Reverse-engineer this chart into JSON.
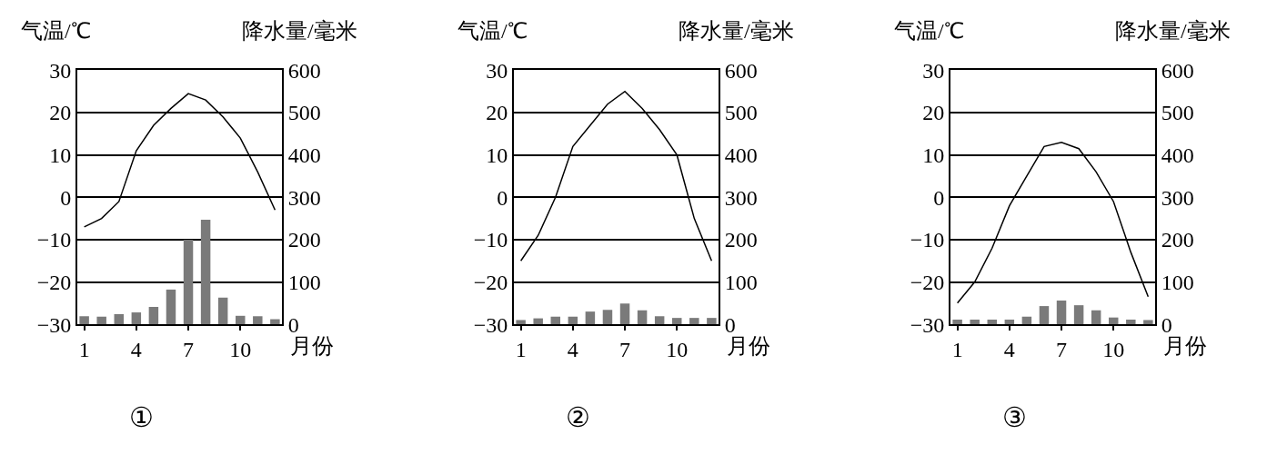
{
  "chart_data": [
    {
      "type": "bar",
      "title": "①",
      "xlabel": "月份",
      "ylabel": "气温/℃",
      "y2label": "降水量/毫米",
      "x": [
        1,
        2,
        3,
        4,
        5,
        6,
        7,
        8,
        9,
        10,
        11,
        12
      ],
      "xlim": [
        0.6,
        12.4
      ],
      "xticks": [
        1,
        4,
        7,
        10
      ],
      "ylim": [
        -30,
        30
      ],
      "yticks": [
        -30,
        -20,
        -10,
        0,
        10,
        20,
        30
      ],
      "y2lim": [
        0,
        600
      ],
      "y2ticks": [
        0,
        100,
        200,
        300,
        400,
        500,
        600
      ],
      "grid": "y",
      "series": [
        {
          "axis": "y2",
          "color": "#7a7a7a",
          "values": [
            19,
            18,
            24,
            28,
            41,
            82,
            200,
            247,
            63,
            20,
            19,
            12
          ]
        },
        {
          "type": "line",
          "color": "#000000",
          "values": [
            -7,
            -5,
            -1,
            11,
            17,
            21,
            24.5,
            23,
            19,
            14,
            6,
            -3
          ]
        }
      ]
    },
    {
      "type": "bar",
      "title": "②",
      "xlabel": "月份",
      "ylabel": "气温/℃",
      "y2label": "降水量/毫米",
      "x": [
        1,
        2,
        3,
        4,
        5,
        6,
        7,
        8,
        9,
        10,
        11,
        12
      ],
      "xlim": [
        0.6,
        12.4
      ],
      "xticks": [
        1,
        4,
        7,
        10
      ],
      "ylim": [
        -30,
        30
      ],
      "yticks": [
        -30,
        -20,
        -10,
        0,
        10,
        20,
        30
      ],
      "y2lim": [
        0,
        600
      ],
      "y2ticks": [
        0,
        100,
        200,
        300,
        400,
        500,
        600
      ],
      "grid": "y",
      "series": [
        {
          "axis": "y2",
          "color": "#7a7a7a",
          "values": [
            10,
            14,
            18,
            18,
            30,
            34,
            49,
            33,
            19,
            15,
            15,
            15
          ]
        },
        {
          "type": "line",
          "color": "#000000",
          "values": [
            -15,
            -9,
            0,
            12,
            17,
            22,
            25,
            21,
            16,
            10,
            -5,
            -15
          ]
        }
      ]
    },
    {
      "type": "bar",
      "title": "③",
      "xlabel": "月份",
      "ylabel": "气温/℃",
      "y2label": "降水量/毫米",
      "x": [
        1,
        2,
        3,
        4,
        5,
        6,
        7,
        8,
        9,
        10,
        11,
        12
      ],
      "xlim": [
        0.6,
        12.4
      ],
      "xticks": [
        1,
        4,
        7,
        10
      ],
      "ylim": [
        -30,
        30
      ],
      "yticks": [
        -30,
        -20,
        -10,
        0,
        10,
        20,
        30
      ],
      "y2lim": [
        0,
        600
      ],
      "y2ticks": [
        0,
        100,
        200,
        300,
        400,
        500,
        600
      ],
      "grid": "y",
      "series": [
        {
          "axis": "y2",
          "color": "#7a7a7a",
          "values": [
            11,
            11,
            11,
            11,
            18,
            43,
            56,
            45,
            33,
            16,
            11,
            10
          ]
        },
        {
          "type": "line",
          "color": "#000000",
          "values": [
            -25,
            -20,
            -12,
            -2,
            5,
            12,
            13,
            11.5,
            6,
            -1,
            -13,
            -23.5
          ]
        }
      ]
    }
  ]
}
